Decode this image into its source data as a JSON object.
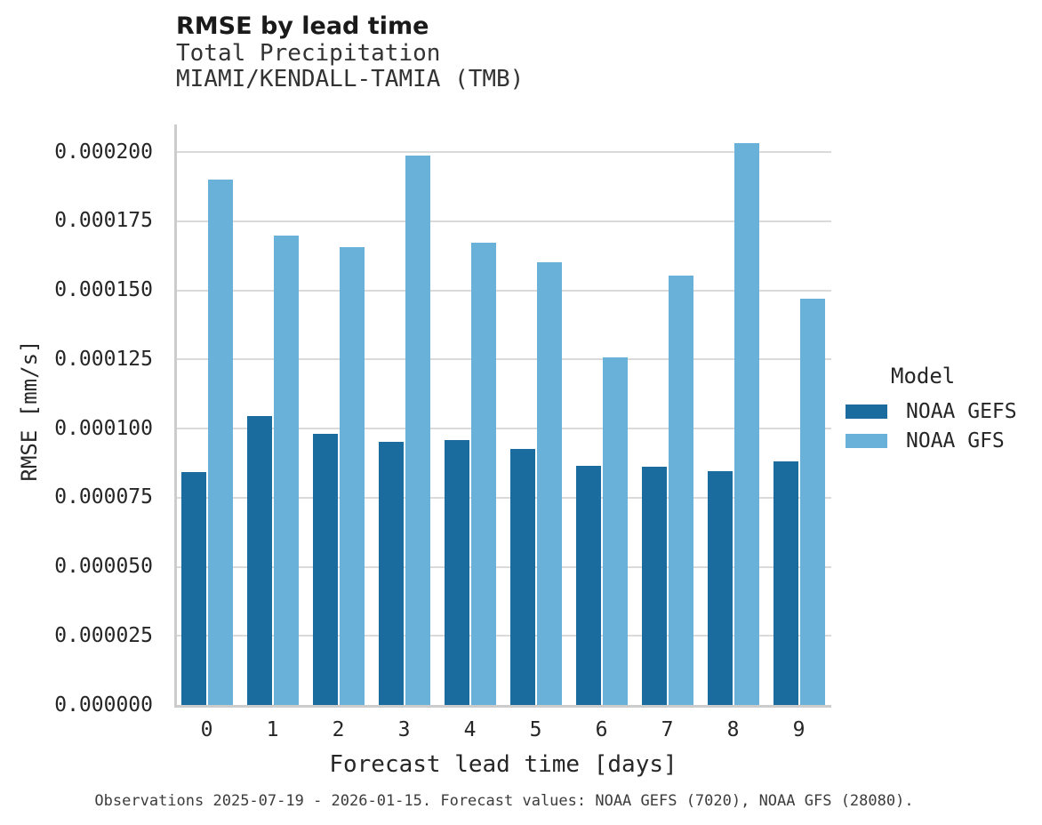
{
  "header": {
    "title": "RMSE by lead time",
    "subtitle_line1": "Total Precipitation",
    "subtitle_line2": "MIAMI/KENDALL-TAMIA (TMB)"
  },
  "axes": {
    "y_label": "RMSE [mm/s]",
    "x_label": "Forecast lead time [days]"
  },
  "legend": {
    "title": "Model"
  },
  "caption": "Observations 2025-07-19 - 2026-01-15. Forecast values: NOAA GEFS (7020), NOAA GFS (28080).",
  "colors": {
    "gefs_bar": "#1A6C9E",
    "gfs_bar": "#69B1D8",
    "gridline": "#DADADA",
    "spine": "#CCCCCC",
    "text": "#262626"
  },
  "chart_data": {
    "type": "bar",
    "title": "RMSE by lead time",
    "subtitle": [
      "Total Precipitation",
      "MIAMI/KENDALL-TAMIA (TMB)"
    ],
    "xlabel": "Forecast lead time [days]",
    "ylabel": "RMSE [mm/s]",
    "categories": [
      "0",
      "1",
      "2",
      "3",
      "4",
      "5",
      "6",
      "7",
      "8",
      "9"
    ],
    "series": [
      {
        "name": "NOAA GEFS",
        "color": "#1A6C9E",
        "values": [
          8.43e-05,
          0.0001045,
          9.81e-05,
          9.53e-05,
          9.57e-05,
          9.27e-05,
          8.66e-05,
          8.62e-05,
          8.46e-05,
          8.81e-05
        ]
      },
      {
        "name": "NOAA GFS",
        "color": "#69B1D8",
        "values": [
          0.00019,
          0.0001697,
          0.0001657,
          0.0001986,
          0.0001673,
          0.00016,
          0.0001256,
          0.0001552,
          0.0002031,
          0.000147
        ]
      }
    ],
    "ylim": [
      0,
      0.00021
    ],
    "yticks": [
      0,
      2.5e-05,
      5e-05,
      7.5e-05,
      0.0001,
      0.000125,
      0.00015,
      0.000175,
      0.0002
    ],
    "ytick_labels": [
      "0.000000",
      "0.000025",
      "0.000050",
      "0.000075",
      "0.000100",
      "0.000125",
      "0.000150",
      "0.000175",
      "0.000200"
    ],
    "grid": "horizontal",
    "legend_title": "Model",
    "legend_position": "right"
  }
}
